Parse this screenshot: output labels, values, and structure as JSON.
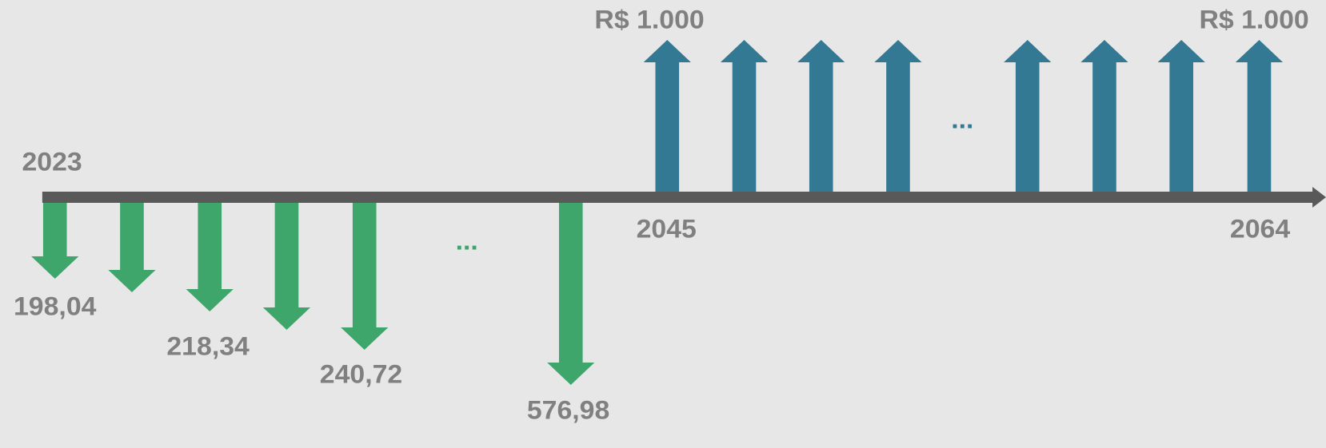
{
  "timeline": {
    "start_year": "2023",
    "payout_start_year": "2045",
    "end_year": "2064"
  },
  "contributions": {
    "labels": [
      "198,04",
      "218,34",
      "240,72",
      "576,98"
    ],
    "ellipsis": "..."
  },
  "payouts": {
    "labels": [
      "R$ 1.000",
      "R$ 1.000"
    ],
    "ellipsis": "..."
  }
}
